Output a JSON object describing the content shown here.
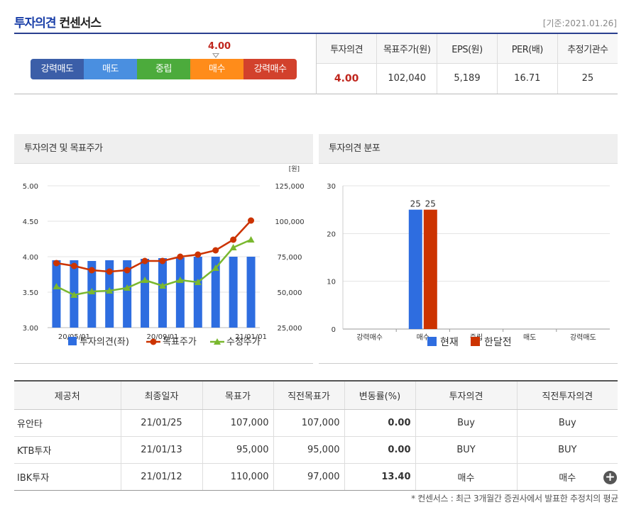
{
  "header": {
    "title_main": "투자의견",
    "title_sub": "컨센서스",
    "base_date": "[기준:2021.01.26]"
  },
  "consensus": {
    "scale_labels": [
      "강력매도",
      "매도",
      "중립",
      "매수",
      "강력매수"
    ],
    "scale_colors": [
      "#3b5ea8",
      "#4a8fe0",
      "#4cab3c",
      "#ff8c1a",
      "#d2412c"
    ],
    "current_score": "4.00",
    "summary_headers": [
      "투자의견",
      "목표주가(원)",
      "EPS(원)",
      "PER(배)",
      "추정기관수"
    ],
    "summary_values": [
      "4.00",
      "102,040",
      "5,189",
      "16.71",
      "25"
    ]
  },
  "panel1": {
    "title": "투자의견 및 목표주가"
  },
  "panel2": {
    "title": "투자의견 분포"
  },
  "chart_data": [
    {
      "type": "bar+line",
      "title": "투자의견 및 목표주가",
      "left_axis": {
        "ticks": [
          "5.00",
          "4.50",
          "4.00",
          "3.50",
          "3.00"
        ],
        "range": [
          3.0,
          5.0
        ]
      },
      "right_axis": {
        "unit": "[원]",
        "ticks": [
          "125,000",
          "100,000",
          "75,000",
          "50,000",
          "25,000"
        ],
        "range": [
          25000,
          125000
        ]
      },
      "x_tick_labels": [
        "20/05/01",
        "20/09/01",
        "21/01/01"
      ],
      "x_tick_index": [
        1.5,
        6.5,
        11.5
      ],
      "series": [
        {
          "name": "투자의견(좌)",
          "kind": "bar",
          "color": "#2e6de0",
          "values": [
            3.95,
            3.95,
            3.94,
            3.95,
            3.95,
            3.97,
            3.98,
            3.99,
            4.0,
            4.0,
            4.0,
            4.0
          ]
        },
        {
          "name": "목표주가",
          "kind": "line",
          "color": "#cc3300",
          "values": [
            70500,
            68500,
            65500,
            64500,
            65500,
            72000,
            72000,
            75000,
            76500,
            79500,
            87000,
            100500
          ]
        },
        {
          "name": "수정주가",
          "kind": "line",
          "color": "#7ab82f",
          "values": [
            54000,
            48000,
            50500,
            51000,
            53000,
            58500,
            54500,
            58500,
            57000,
            67000,
            81500,
            87000
          ]
        }
      ]
    },
    {
      "type": "bar",
      "title": "투자의견 분포",
      "categories": [
        "강력매수",
        "매수",
        "중립",
        "매도",
        "강력매도"
      ],
      "ylim": [
        0,
        30
      ],
      "y_ticks": [
        "30",
        "20",
        "10",
        "0"
      ],
      "series": [
        {
          "name": "현재",
          "color": "#2e6de0",
          "values": [
            0,
            25,
            0,
            0,
            0
          ]
        },
        {
          "name": "한달전",
          "color": "#cc3300",
          "values": [
            0,
            25,
            0,
            0,
            0
          ]
        }
      ]
    }
  ],
  "detail_table": {
    "headers": [
      "제공처",
      "최종일자",
      "목표가",
      "직전목표가",
      "변동률(%)",
      "투자의견",
      "직전투자의견"
    ],
    "rows": [
      [
        "유안타",
        "21/01/25",
        "107,000",
        "107,000",
        "0.00",
        "Buy",
        "Buy"
      ],
      [
        "KTB투자",
        "21/01/13",
        "95,000",
        "95,000",
        "0.00",
        "BUY",
        "BUY"
      ],
      [
        "IBK투자",
        "21/01/12",
        "110,000",
        "97,000",
        "13.40",
        "매수",
        "매수"
      ]
    ]
  },
  "footnote": "* 컨센서스 : 최근 3개월간 증권사에서 발표한 추정치의 평균"
}
